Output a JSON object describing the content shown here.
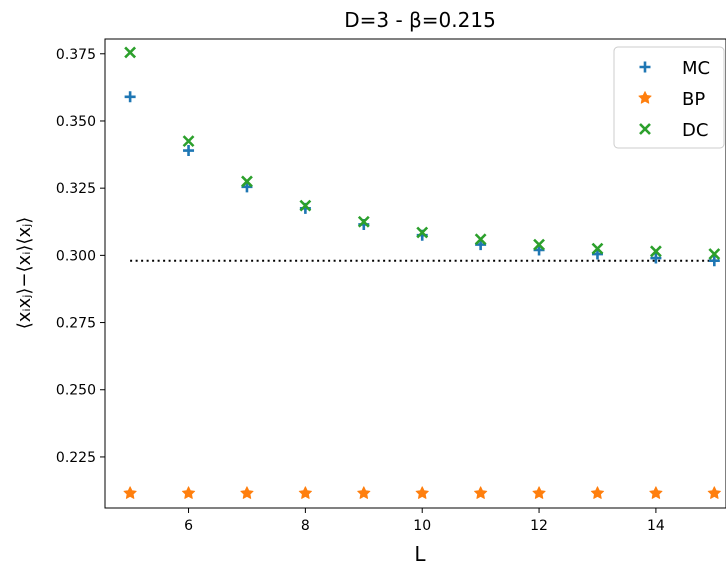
{
  "chart_data": {
    "type": "scatter",
    "title": "D=3 - β=0.215",
    "xlabel": "L",
    "ylabel": "⟨xᵢxⱼ⟩−⟨xᵢ⟩⟨xⱼ⟩",
    "xlim": [
      4.57,
      15.2
    ],
    "ylim": [
      0.206,
      0.3805
    ],
    "x_ticks": [
      6,
      8,
      10,
      12,
      14
    ],
    "x_tick_labels": [
      "6",
      "8",
      "10",
      "12",
      "14"
    ],
    "y_ticks": [
      0.225,
      0.25,
      0.275,
      0.3,
      0.325,
      0.35,
      0.375
    ],
    "y_tick_labels": [
      "0.225",
      "0.250",
      "0.275",
      "0.300",
      "0.325",
      "0.350",
      "0.375"
    ],
    "grid": false,
    "legend_position": "top-right",
    "x": [
      5,
      6,
      7,
      8,
      9,
      10,
      11,
      12,
      13,
      14,
      15
    ],
    "series": [
      {
        "name": "MC",
        "marker": "plus",
        "color": "#1f77b4",
        "values": [
          0.359,
          0.339,
          0.3255,
          0.3175,
          0.3115,
          0.3075,
          0.304,
          0.302,
          0.3005,
          0.299,
          0.298
        ]
      },
      {
        "name": "BP",
        "marker": "star",
        "color": "#ff7f0e",
        "values": [
          0.2115,
          0.2115,
          0.2115,
          0.2115,
          0.2115,
          0.2115,
          0.2115,
          0.2115,
          0.2115,
          0.2115,
          0.2115
        ]
      },
      {
        "name": "DC",
        "marker": "x",
        "color": "#2ca02c",
        "values": [
          0.3755,
          0.3425,
          0.3275,
          0.3185,
          0.3125,
          0.3085,
          0.306,
          0.304,
          0.3025,
          0.3015,
          0.3005
        ]
      }
    ],
    "reference_line": {
      "style": "dotted",
      "color": "#000000",
      "x_range": [
        5,
        15
      ],
      "y": 0.298
    }
  }
}
